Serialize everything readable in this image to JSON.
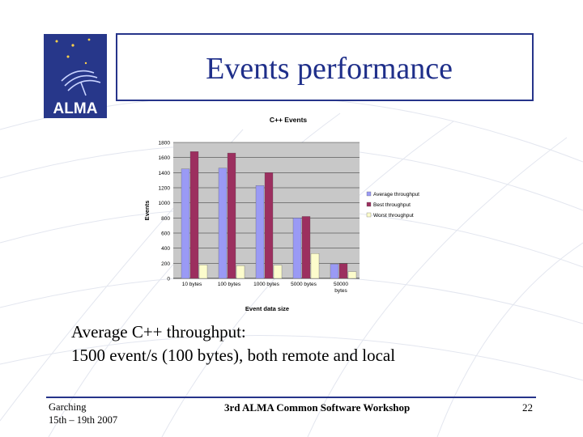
{
  "slide": {
    "title": "Events performance",
    "logo_text": "ALMA",
    "caption_lines": [
      "Average C++ throughput:",
      "1500 event/s (100 bytes), both remote and local"
    ],
    "footer": {
      "location": "Garching",
      "dates": "15th – 19th 2007",
      "event": "3rd ALMA Common Software Workshop",
      "page": "22"
    }
  },
  "colors": {
    "brand_blue": "#27378a",
    "average": "#9a9af5",
    "best": "#9c2f5f",
    "worst": "#fcfccc",
    "plot_bg": "#c8c8c8"
  },
  "chart_data": {
    "type": "bar",
    "title": "C++ Events",
    "xlabel": "Event data size",
    "ylabel": "Events",
    "categories": [
      "10 bytes",
      "100 bytes",
      "1000 bytes",
      "5000 bytes",
      "50000 bytes"
    ],
    "series": [
      {
        "name": "Average throughput",
        "values": [
          1450,
          1460,
          1230,
          800,
          190
        ]
      },
      {
        "name": "Best throughput",
        "values": [
          1680,
          1660,
          1400,
          820,
          195
        ]
      },
      {
        "name": "Worst throughput",
        "values": [
          180,
          170,
          175,
          330,
          90
        ]
      }
    ],
    "ylim": [
      0,
      1800
    ],
    "yticks": [
      "0",
      "200",
      "400",
      "600",
      "800",
      "1000",
      "1200",
      "1400",
      "1600",
      "1800"
    ],
    "grid": true,
    "legend": "right"
  }
}
